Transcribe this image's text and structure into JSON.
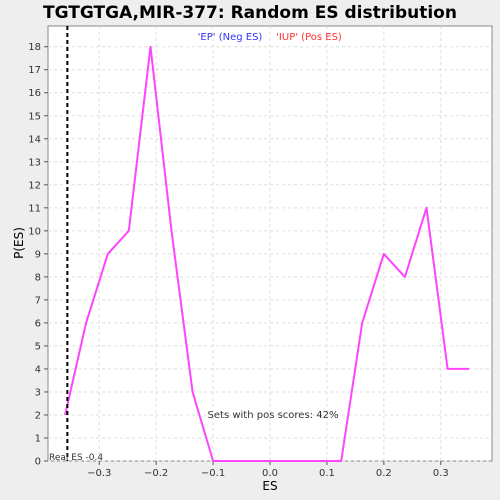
{
  "chart_data": {
    "type": "line",
    "title": "TGTGTGA,MIR-377: Random ES distribution",
    "xlabel": "ES",
    "ylabel": "P(ES)",
    "xlim": [
      -0.39,
      0.39
    ],
    "ylim": [
      0,
      18.9
    ],
    "x_ticks": [
      -0.3,
      -0.2,
      -0.1,
      0.0,
      0.1,
      0.2,
      0.3
    ],
    "x_tick_labels": [
      "−0.3",
      "−0.2",
      "−0.1",
      "0.0",
      "0.1",
      "0.2",
      "0.3"
    ],
    "y_ticks": [
      0,
      1,
      2,
      3,
      4,
      5,
      6,
      7,
      8,
      9,
      10,
      11,
      12,
      13,
      14,
      15,
      16,
      17,
      18
    ],
    "grid": true,
    "legend": {
      "placement": "top-center",
      "neg_label": "'EP' (Neg ES)",
      "pos_label": "'IUP' (Pos ES)",
      "neg_color": "#3333ff",
      "pos_color": "#ff3333"
    },
    "series": [
      {
        "color": "#ff44ff",
        "x": [
          -0.36,
          -0.323,
          -0.285,
          -0.248,
          -0.21,
          -0.173,
          -0.136,
          -0.1,
          -0.062,
          -0.025,
          0.012,
          0.05,
          0.087,
          0.125,
          0.162,
          0.2,
          0.237,
          0.275,
          0.312,
          0.35
        ],
        "values": [
          2,
          6,
          9,
          10,
          18,
          10,
          3,
          0,
          0,
          0,
          0,
          0,
          0,
          0,
          6,
          9,
          8,
          11,
          4,
          4
        ]
      }
    ],
    "real_es": {
      "value": -0.356,
      "label": "Real ES -0.4",
      "line_color": "#000000"
    },
    "annotation": "Sets with pos scores: 42%"
  }
}
